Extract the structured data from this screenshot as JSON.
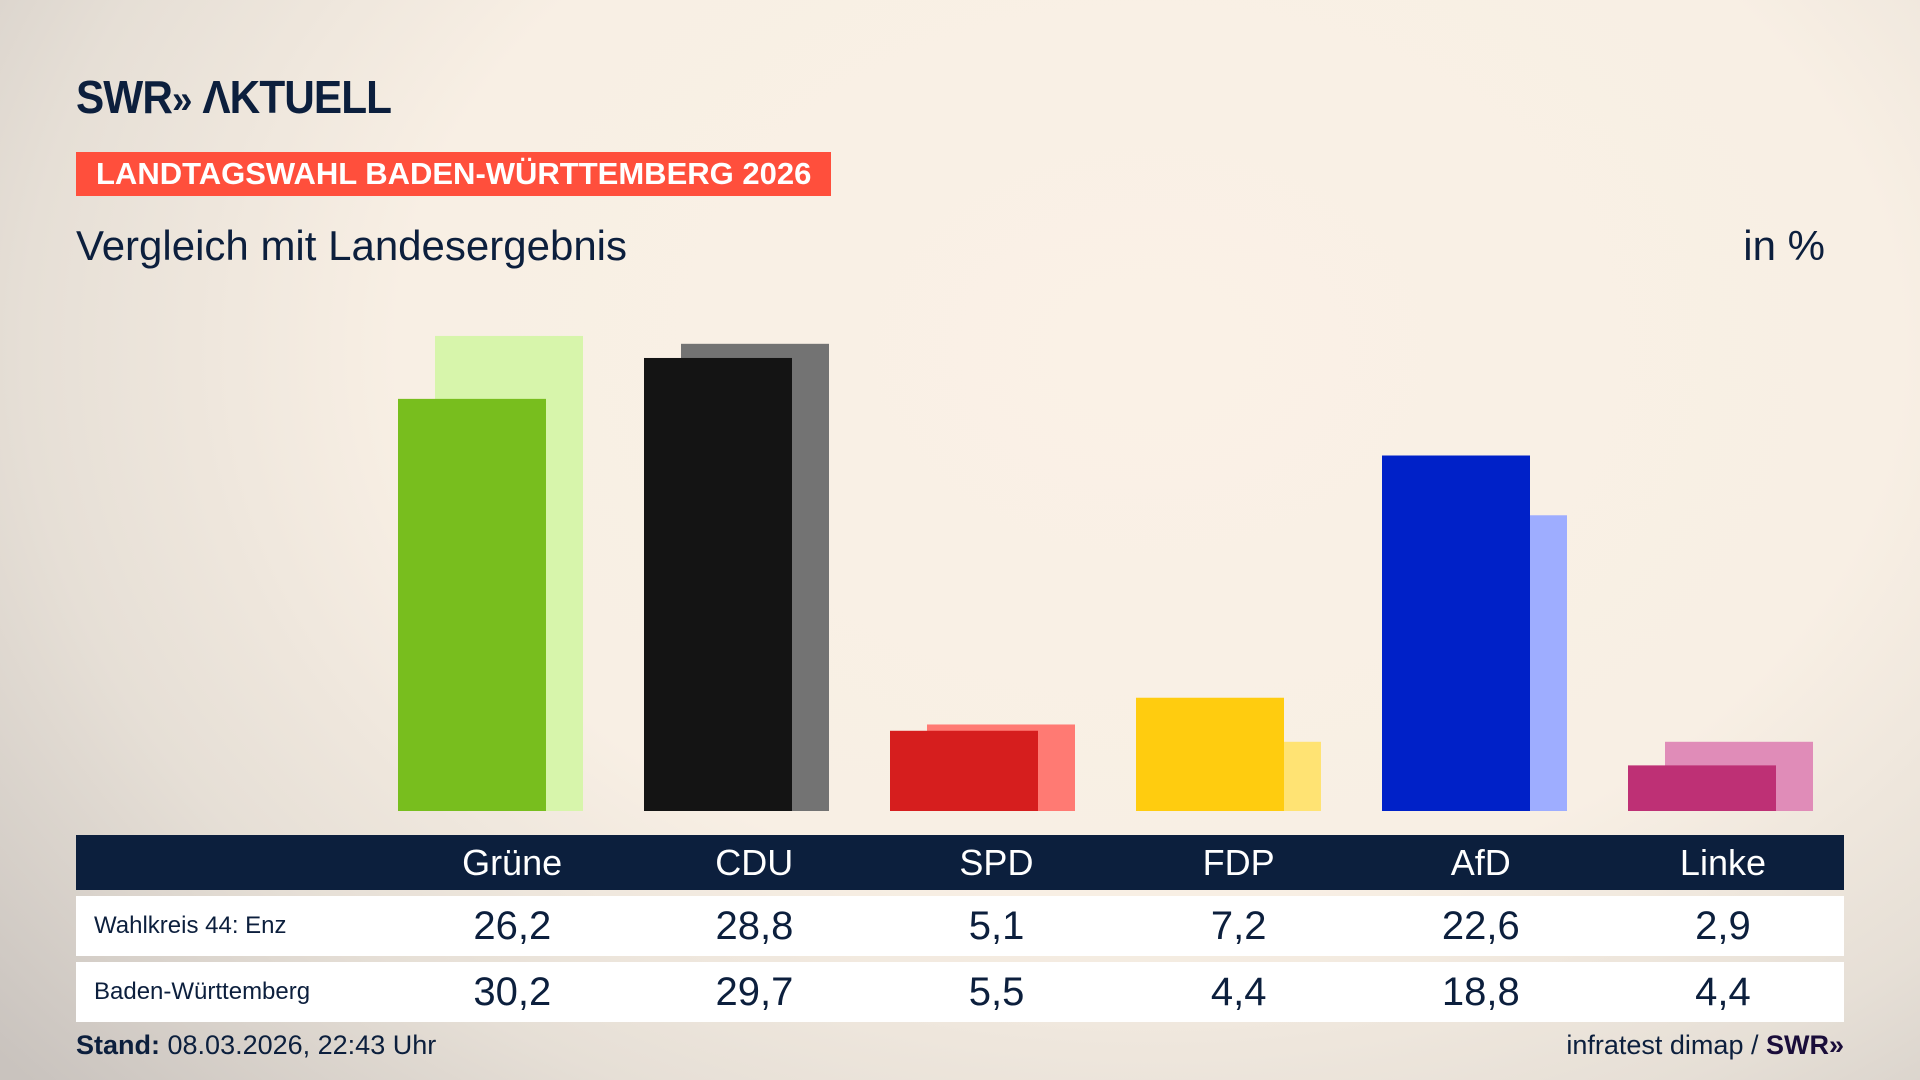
{
  "brand": {
    "logo": "SWR» AKTUELL",
    "source_logo": "SWR»"
  },
  "banner": "LANDTAGSWAHL BADEN-WÜRTTEMBERG 2026",
  "subtitle": "Vergleich mit Landesergebnis",
  "unit": "in %",
  "table": {
    "columns": [
      "Grüne",
      "CDU",
      "SPD",
      "FDP",
      "AfD",
      "Linke"
    ],
    "rows": [
      {
        "label": "Wahlkreis 44: Enz",
        "values": [
          "26,2",
          "28,8",
          "5,1",
          "7,2",
          "22,6",
          "2,9"
        ]
      },
      {
        "label": "Baden-Württemberg",
        "values": [
          "30,2",
          "29,7",
          "5,5",
          "4,4",
          "18,8",
          "4,4"
        ]
      }
    ]
  },
  "footer": {
    "stand_label": "Stand:",
    "stand_value": "08.03.2026, 22:43 Uhr",
    "source": "infratest dimap /"
  },
  "chart_data": {
    "type": "bar",
    "categories": [
      "Grüne",
      "CDU",
      "SPD",
      "FDP",
      "AfD",
      "Linke"
    ],
    "series": [
      {
        "name": "Wahlkreis 44: Enz",
        "values": [
          26.2,
          28.8,
          5.1,
          7.2,
          22.6,
          2.9
        ],
        "colors": [
          "#78be1e",
          "#141414",
          "#d61e1e",
          "#ffcc0f",
          "#0021c8",
          "#be3075"
        ]
      },
      {
        "name": "Baden-Württemberg",
        "values": [
          30.2,
          29.7,
          5.5,
          4.4,
          18.8,
          4.4
        ],
        "colors": [
          "#d7f5ab",
          "#737373",
          "#ff7a73",
          "#ffe373",
          "#9eadff",
          "#e08cb8"
        ]
      }
    ],
    "ylim": [
      0,
      30.2
    ],
    "grid": false,
    "legend": "none"
  }
}
